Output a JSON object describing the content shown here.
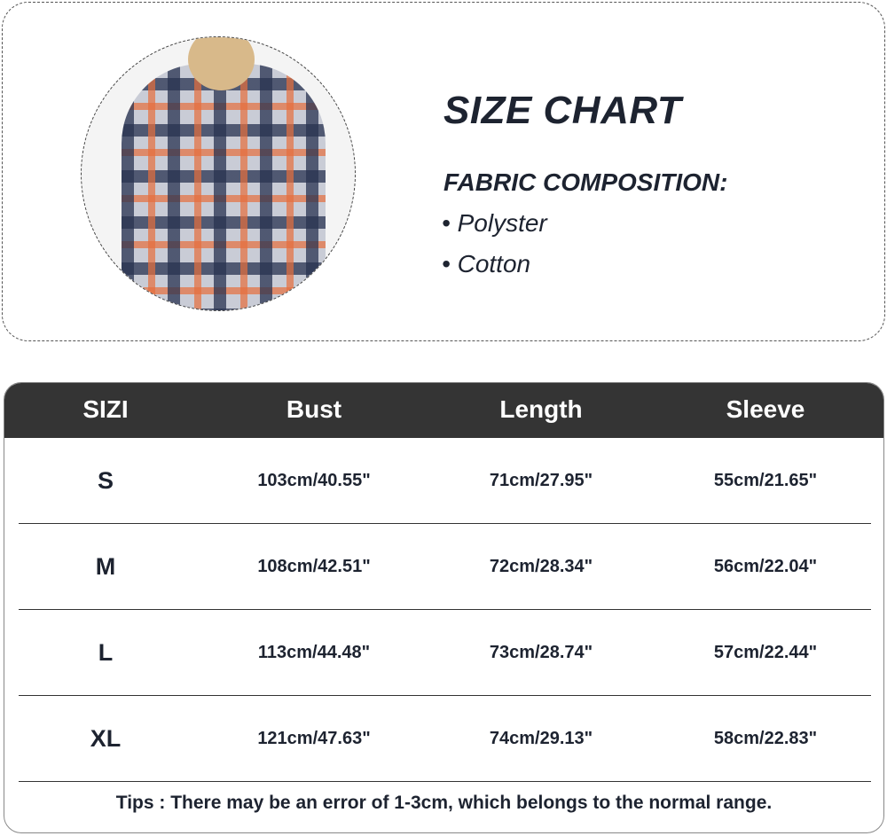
{
  "header": {
    "title": "SIZE CHART",
    "fabric_label": "FABRIC COMPOSITION:",
    "fabrics": [
      "Polyster",
      "Cotton"
    ]
  },
  "table": {
    "columns": [
      "SIZI",
      "Bust",
      "Length",
      "Sleeve"
    ],
    "rows": [
      [
        "S",
        "103cm/40.55\"",
        "71cm/27.95\"",
        "55cm/21.65\""
      ],
      [
        "M",
        "108cm/42.51\"",
        "72cm/28.34\"",
        "56cm/22.04\""
      ],
      [
        "L",
        "113cm/44.48\"",
        "73cm/28.74\"",
        "57cm/22.44\""
      ],
      [
        "XL",
        "121cm/47.63\"",
        "74cm/29.13\"",
        "58cm/22.83\""
      ]
    ],
    "tips": "Tips : There may be an error of 1-3cm, which belongs to the normal range."
  },
  "colors": {
    "header_bg": "#343434",
    "text": "#1d2330",
    "accent_plaid_orange": "#e66e3c",
    "accent_plaid_navy": "#283250"
  }
}
